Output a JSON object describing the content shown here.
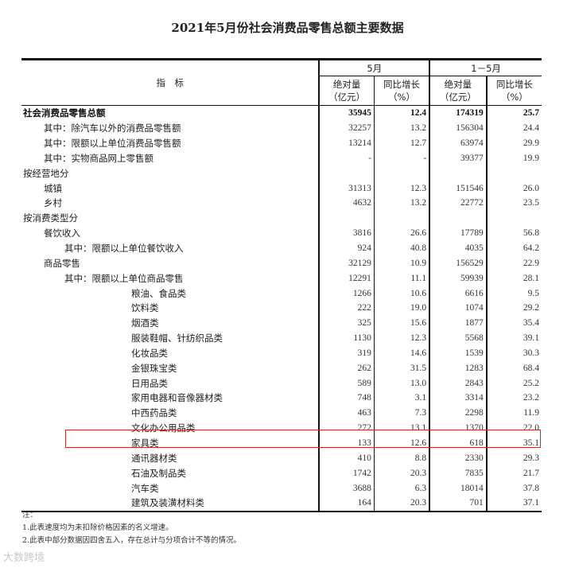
{
  "title": "2021年5月份社会消费品零售总额主要数据",
  "header": {
    "indicator": "指　标",
    "group1": "5月",
    "group2": "1－5月",
    "abs": "绝对量",
    "abs_unit": "（亿元）",
    "yoy": "同比增长",
    "yoy_unit": "（%）"
  },
  "rows": [
    {
      "label": "社会消费品零售总额",
      "indent": 0,
      "bold": true,
      "v": [
        "35945",
        "12.4",
        "174319",
        "25.7"
      ]
    },
    {
      "label": "其中：除汽车以外的消费品零售额",
      "indent": 1,
      "v": [
        "32257",
        "13.2",
        "156304",
        "24.4"
      ]
    },
    {
      "label": "其中：限额以上单位消费品零售额",
      "indent": 1,
      "v": [
        "13214",
        "12.7",
        "63974",
        "29.9"
      ]
    },
    {
      "label": "其中：实物商品网上零售额",
      "indent": 1,
      "v": [
        "-",
        "-",
        "39377",
        "19.9"
      ]
    },
    {
      "label": "按经营地分",
      "indent": 0,
      "v": [
        "",
        "",
        "",
        ""
      ]
    },
    {
      "label": "城镇",
      "indent": 1,
      "v": [
        "31313",
        "12.3",
        "151546",
        "26.0"
      ]
    },
    {
      "label": "乡村",
      "indent": 1,
      "v": [
        "4632",
        "13.2",
        "22772",
        "23.5"
      ]
    },
    {
      "label": "按消费类型分",
      "indent": 0,
      "v": [
        "",
        "",
        "",
        ""
      ]
    },
    {
      "label": "餐饮收入",
      "indent": 1,
      "v": [
        "3816",
        "26.6",
        "17789",
        "56.8"
      ]
    },
    {
      "label": "其中：限额以上单位餐饮收入",
      "indent": 2,
      "v": [
        "924",
        "40.8",
        "4035",
        "64.2"
      ]
    },
    {
      "label": "商品零售",
      "indent": 1,
      "v": [
        "32129",
        "10.9",
        "156529",
        "22.9"
      ]
    },
    {
      "label": "其中：限额以上单位商品零售",
      "indent": 2,
      "v": [
        "12291",
        "11.1",
        "59939",
        "28.1"
      ]
    },
    {
      "label": "粮油、食品类",
      "indent": 3,
      "v": [
        "1266",
        "10.6",
        "6616",
        "9.5"
      ]
    },
    {
      "label": "饮料类",
      "indent": 3,
      "v": [
        "222",
        "19.0",
        "1074",
        "29.2"
      ]
    },
    {
      "label": "烟酒类",
      "indent": 3,
      "v": [
        "325",
        "15.6",
        "1877",
        "35.4"
      ]
    },
    {
      "label": "服装鞋帽、针纺织品类",
      "indent": 3,
      "v": [
        "1130",
        "12.3",
        "5568",
        "39.1"
      ]
    },
    {
      "label": "化妆品类",
      "indent": 3,
      "v": [
        "319",
        "14.6",
        "1539",
        "30.3"
      ]
    },
    {
      "label": "金银珠宝类",
      "indent": 3,
      "v": [
        "262",
        "31.5",
        "1283",
        "68.4"
      ]
    },
    {
      "label": "日用品类",
      "indent": 3,
      "v": [
        "589",
        "13.0",
        "2843",
        "25.2"
      ]
    },
    {
      "label": "家用电器和音像器材类",
      "indent": 3,
      "v": [
        "748",
        "3.1",
        "3314",
        "23.2"
      ]
    },
    {
      "label": "中西药品类",
      "indent": 3,
      "v": [
        "463",
        "7.3",
        "2298",
        "11.9"
      ]
    },
    {
      "label": "文化办公用品类",
      "indent": 3,
      "v": [
        "272",
        "13.1",
        "1370",
        "22.0"
      ]
    },
    {
      "label": "家具类",
      "indent": 3,
      "highlight": true,
      "v": [
        "133",
        "12.6",
        "618",
        "35.1"
      ]
    },
    {
      "label": "通讯器材类",
      "indent": 3,
      "v": [
        "410",
        "8.8",
        "2330",
        "29.3"
      ]
    },
    {
      "label": "石油及制品类",
      "indent": 3,
      "v": [
        "1742",
        "20.3",
        "7835",
        "21.7"
      ]
    },
    {
      "label": "汽车类",
      "indent": 3,
      "v": [
        "3688",
        "6.3",
        "18014",
        "37.8"
      ]
    },
    {
      "label": "建筑及装潢材料类",
      "indent": 3,
      "v": [
        "164",
        "20.3",
        "701",
        "37.1"
      ]
    }
  ],
  "notes": {
    "head": "注：",
    "n1": "1.此表速度均为未扣除价格因素的名义增速。",
    "n2": "2.此表中部分数据因四舍五入，存在总计与分项合计不等的情况。"
  },
  "watermark": "大数跨境",
  "colors": {
    "highlight": "#c0302a"
  }
}
